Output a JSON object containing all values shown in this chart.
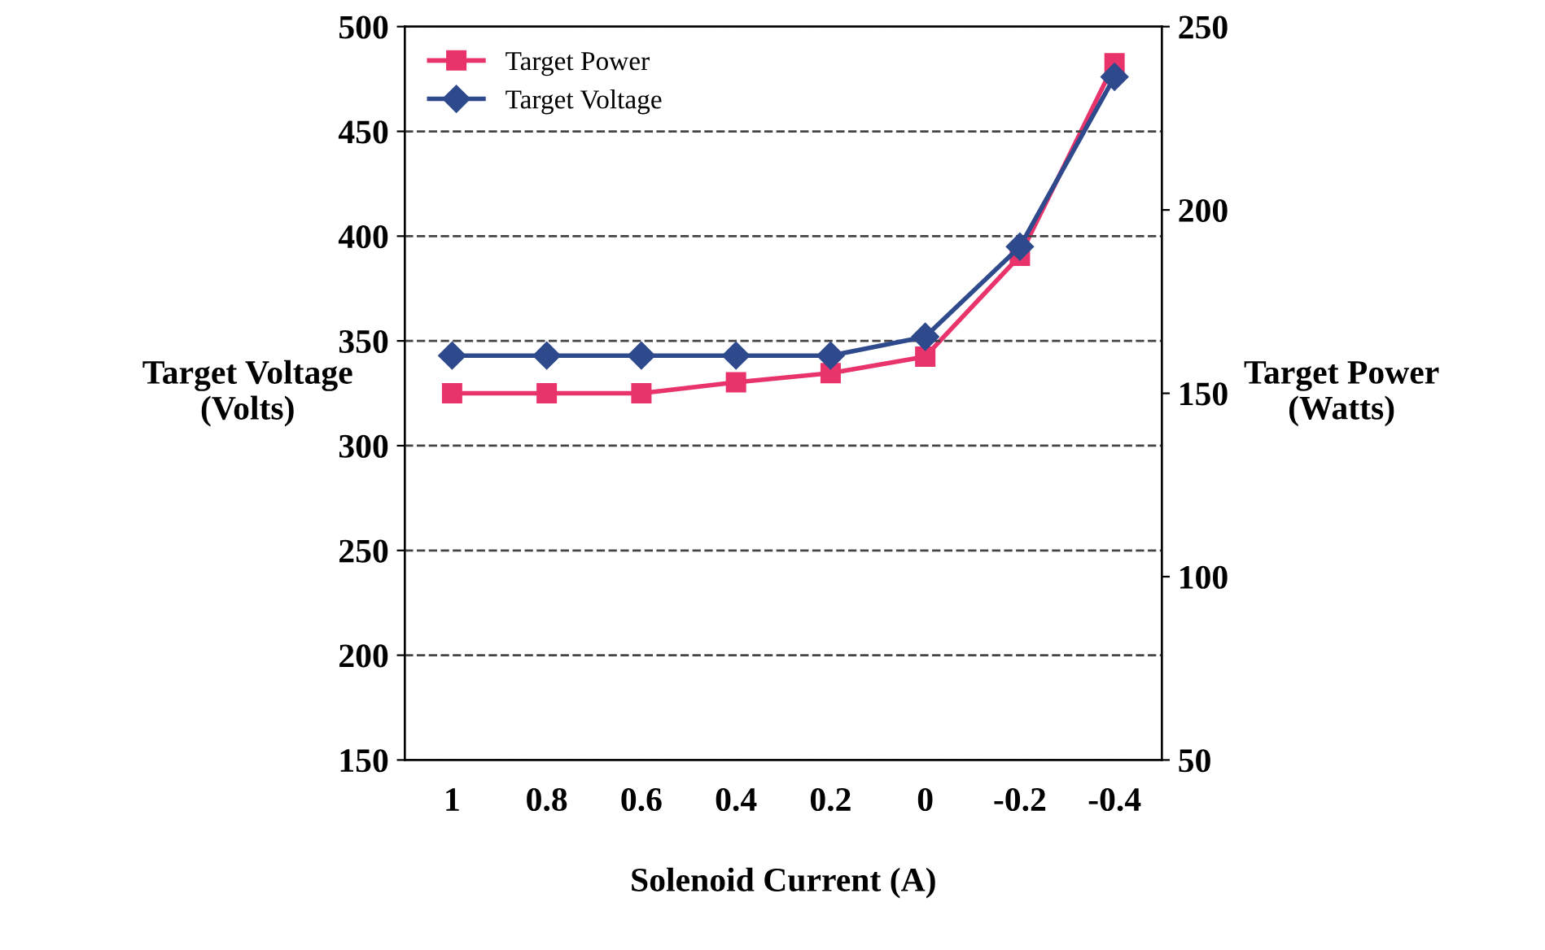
{
  "chart_data": {
    "type": "line",
    "xlabel": "Solenoid Current (A)",
    "ylabel": "Target Voltage\n(Volts)",
    "y2label": "Target Power\n(Watts)",
    "categories": [
      "1",
      "0.8",
      "0.6",
      "0.4",
      "0.2",
      "0",
      "-0.2",
      "-0.4"
    ],
    "series": [
      {
        "name": "Target Power",
        "color": "#e8336b",
        "axis": "y2",
        "marker": "square",
        "values": [
          150,
          150,
          150,
          153,
          155.5,
          160,
          187.5,
          240
        ]
      },
      {
        "name": "Target Voltage",
        "color": "#2e4a8c",
        "axis": "y",
        "marker": "diamond",
        "values": [
          343,
          343,
          343,
          343,
          343,
          352,
          395,
          476
        ]
      }
    ],
    "ylim": [
      150,
      500
    ],
    "yticks": [
      150,
      200,
      250,
      300,
      350,
      400,
      450,
      500
    ],
    "y2lim": [
      50,
      250
    ],
    "y2ticks": [
      50,
      100,
      150,
      200,
      250
    ],
    "grid": "y",
    "legend": "top left",
    "line_style": "solid"
  }
}
